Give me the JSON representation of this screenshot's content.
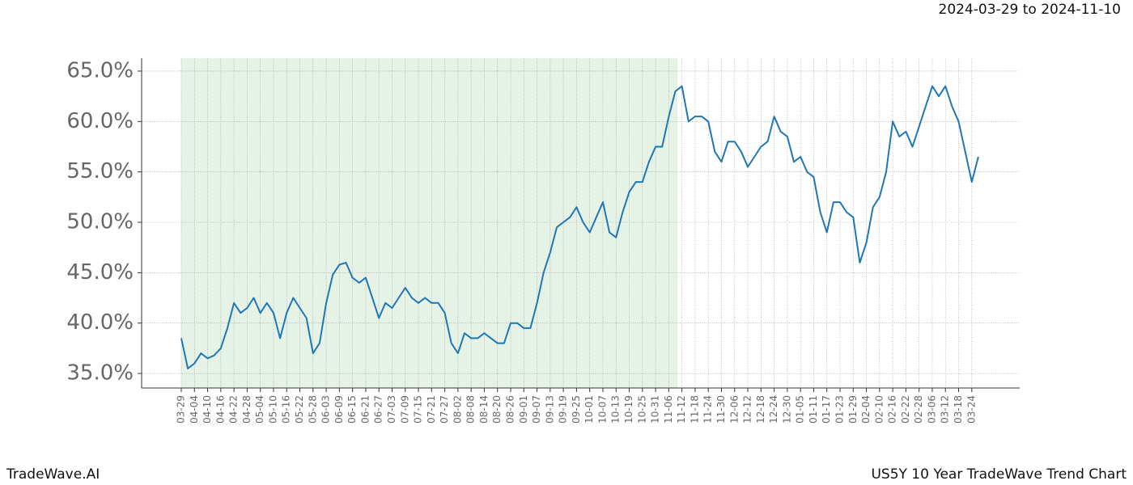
{
  "chart_data": {
    "type": "line",
    "title": "US5Y 10 Year TradeWave Trend Chart",
    "brand": "TradeWave.AI",
    "highlight": {
      "label": "2024-03-29 to 2024-11-10",
      "start": 0,
      "end": 75.33,
      "color": "#e6f2e6"
    },
    "categories": [
      "03-29",
      null,
      "04-04",
      null,
      "04-10",
      null,
      "04-16",
      null,
      "04-22",
      null,
      "04-28",
      null,
      "05-04",
      null,
      "05-10",
      null,
      "05-16",
      null,
      "05-22",
      null,
      "05-28",
      null,
      "06-03",
      null,
      "06-09",
      null,
      "06-15",
      null,
      "06-21",
      null,
      "06-27",
      null,
      "07-03",
      null,
      "07-09",
      null,
      "07-15",
      null,
      "07-21",
      null,
      "07-27",
      null,
      "08-02",
      null,
      "08-08",
      null,
      "08-14",
      null,
      "08-20",
      null,
      "08-26",
      null,
      "09-01",
      null,
      "09-07",
      null,
      "09-13",
      null,
      "09-19",
      null,
      "09-25",
      null,
      "10-01",
      null,
      "10-07",
      null,
      "10-13",
      null,
      "10-19",
      null,
      "10-25",
      null,
      "10-31",
      null,
      "11-06",
      null,
      "11-12",
      null,
      "11-18",
      null,
      "11-24",
      null,
      "11-30",
      null,
      "12-06",
      null,
      "12-12",
      null,
      "12-18",
      null,
      "12-24",
      null,
      "12-30",
      null,
      "01-05",
      null,
      "01-11",
      null,
      "01-17",
      null,
      "01-23",
      null,
      "01-29",
      null,
      "02-04",
      null,
      "02-10",
      null,
      "02-16",
      null,
      "02-22",
      null,
      "02-28",
      null,
      "03-06",
      null,
      "03-12",
      null,
      "03-18",
      null,
      "03-24",
      null
    ],
    "series": [
      {
        "name": "US5Y",
        "color": "#1f77b4",
        "values": [
          38.5,
          35.5,
          36.0,
          37.0,
          36.5,
          36.8,
          37.5,
          39.5,
          42.0,
          41.0,
          41.5,
          42.5,
          41.0,
          42.0,
          41.0,
          38.5,
          41.0,
          42.5,
          41.5,
          40.5,
          37.0,
          38.0,
          42.0,
          44.8,
          45.8,
          46.0,
          44.5,
          44.0,
          44.5,
          42.5,
          40.5,
          42.0,
          41.5,
          42.5,
          43.5,
          42.5,
          42.0,
          42.5,
          42.0,
          42.0,
          41.0,
          38.0,
          37.0,
          39.0,
          38.5,
          38.5,
          39.0,
          38.5,
          38.0,
          38.0,
          40.0,
          40.0,
          39.5,
          39.5,
          42.0,
          45.0,
          47.0,
          49.5,
          50.0,
          50.5,
          51.5,
          50.0,
          49.0,
          50.5,
          52.0,
          49.0,
          48.5,
          51.0,
          53.0,
          54.0,
          54.0,
          56.0,
          57.5,
          57.5,
          60.5,
          63.0,
          63.5,
          60.0,
          60.5,
          60.5,
          60.0,
          57.0,
          56.0,
          58.0,
          58.0,
          57.0,
          55.5,
          56.5,
          57.5,
          58.0,
          60.5,
          59.0,
          58.5,
          56.0,
          56.5,
          55.0,
          54.5,
          51.0,
          49.0,
          52.0,
          52.0,
          51.0,
          50.5,
          46.0,
          48.0,
          51.5,
          52.5,
          55.0,
          60.0,
          58.5,
          59.0,
          57.5,
          59.5,
          61.5,
          63.5,
          62.5,
          63.5,
          61.5,
          60.0,
          57.0,
          54.0,
          56.5
        ]
      }
    ],
    "ylim": [
      33.56,
      66.28
    ],
    "yticks": [
      {
        "value": 35,
        "label": "35.0%"
      },
      {
        "value": 40,
        "label": "40.0%"
      },
      {
        "value": 45,
        "label": "45.0%"
      },
      {
        "value": 50,
        "label": "50.0%"
      },
      {
        "value": 55,
        "label": "55.0%"
      },
      {
        "value": 60,
        "label": "60.0%"
      },
      {
        "value": 65,
        "label": "65.0%"
      }
    ],
    "grid": true
  }
}
